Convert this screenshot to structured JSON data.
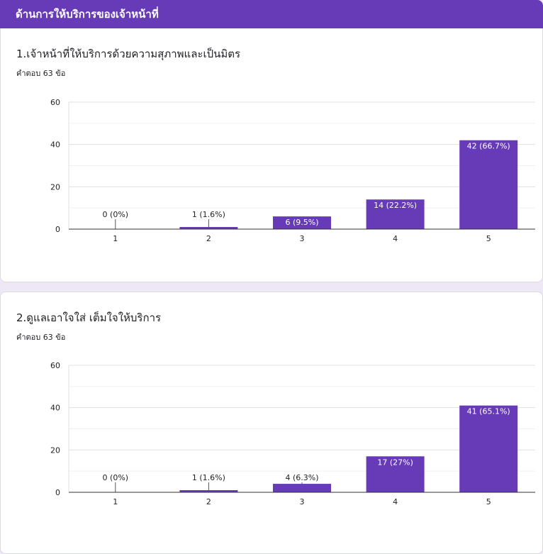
{
  "section": {
    "title": "ด้านการให้บริการของเจ้าหน้าที่"
  },
  "questions": [
    {
      "title": "1.เจ้าหน้าที่ให้บริการด้วยความสุภาพและเป็นมิตร",
      "responses": "คำตอบ 63 ข้อ"
    },
    {
      "title": "2.ดูแลเอาใจใส่ เต็มใจให้บริการ",
      "responses": "คำตอบ 63 ข้อ"
    }
  ],
  "chart_data": [
    {
      "type": "bar",
      "categories": [
        "1",
        "2",
        "3",
        "4",
        "5"
      ],
      "values": [
        0,
        1,
        6,
        14,
        42
      ],
      "data_labels": [
        "0 (0%)",
        "1 (1.6%)",
        "6 (9.5%)",
        "14 (22.2%)",
        "42 (66.7%)"
      ],
      "ylim": [
        0,
        60
      ],
      "yticks": [
        "0",
        "20",
        "40",
        "60"
      ],
      "color": "#673ab7",
      "grid": true
    },
    {
      "type": "bar",
      "categories": [
        "1",
        "2",
        "3",
        "4",
        "5"
      ],
      "values": [
        0,
        1,
        4,
        17,
        41
      ],
      "data_labels": [
        "0 (0%)",
        "1 (1.6%)",
        "4 (6.3%)",
        "17 (27%)",
        "41 (65.1%)"
      ],
      "ylim": [
        0,
        60
      ],
      "yticks": [
        "0",
        "20",
        "40",
        "60"
      ],
      "color": "#673ab7",
      "grid": true
    }
  ]
}
